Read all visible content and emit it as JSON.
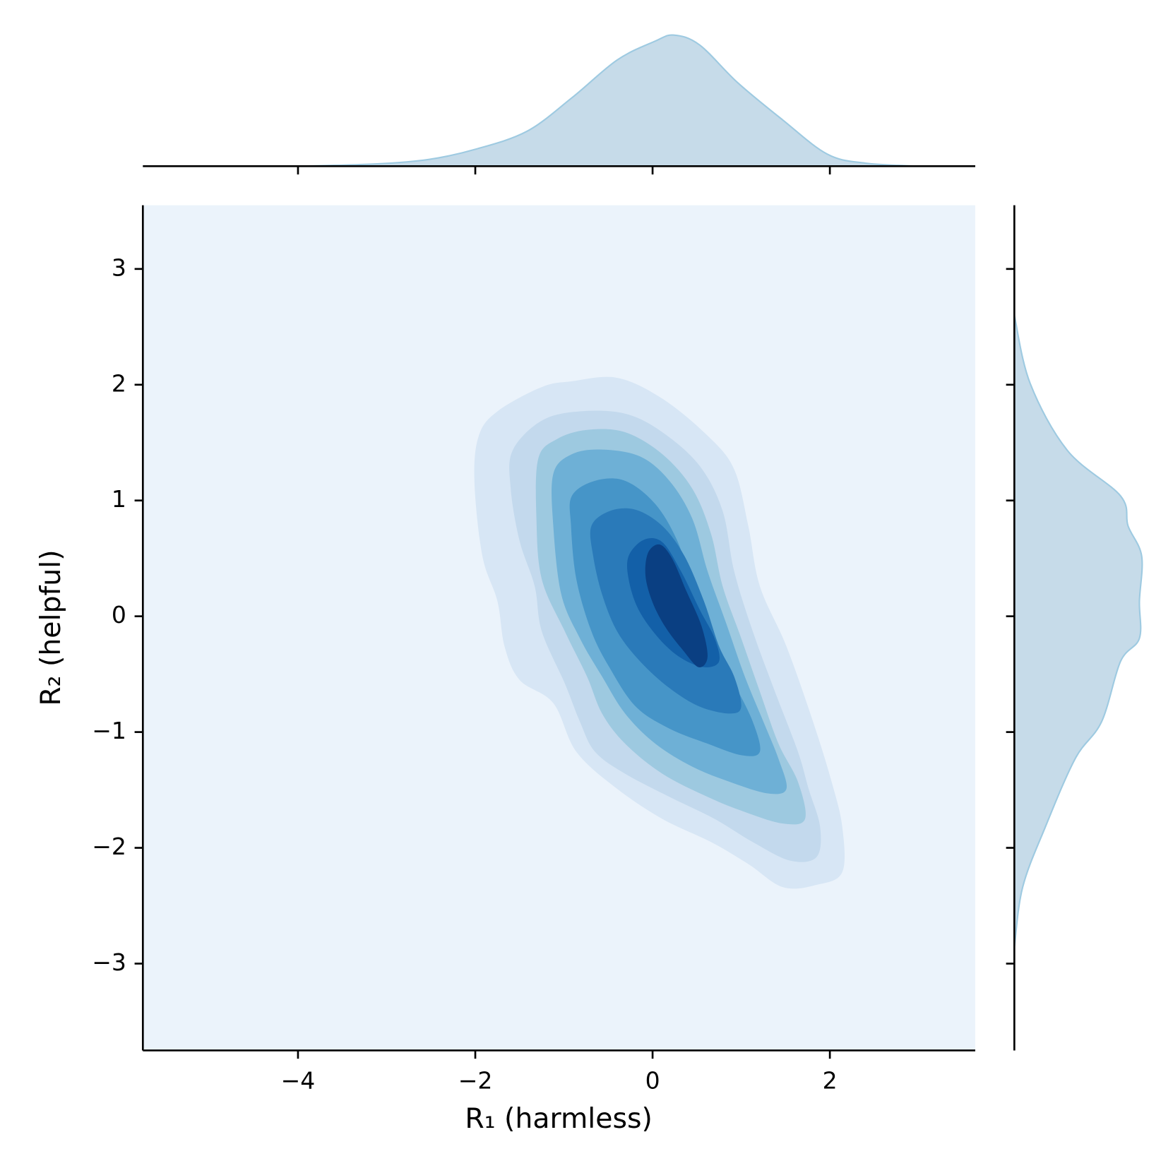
{
  "chart_data": {
    "type": "kde2d",
    "xlabel": "R₁ (harmless)",
    "ylabel": "R₂ (helpful)",
    "xlim": [
      -5.75,
      3.64
    ],
    "ylim": [
      -3.75,
      3.55
    ],
    "xticks": [
      {
        "value": -4,
        "label": "−4"
      },
      {
        "value": -2,
        "label": "−2"
      },
      0,
      2
    ],
    "yticks": [
      {
        "value": -3,
        "label": "−3"
      },
      {
        "value": -2,
        "label": "−2"
      },
      {
        "value": -1,
        "label": "−1"
      },
      0,
      1,
      2,
      3
    ],
    "background_color": "#ebf3fb",
    "contours": [
      {
        "color": "#d7e6f5",
        "x": [
          -1.96,
          -1.75,
          -1.25,
          -0.91,
          -0.4,
          0.11,
          0.62,
          0.92,
          1.08,
          1.21,
          1.51,
          1.81,
          2.02,
          2.14,
          2.14,
          1.85,
          1.47,
          1.08,
          0.66,
          0.11,
          -0.4,
          -0.86,
          -1.12,
          -1.5,
          -1.67,
          -1.75,
          -1.92,
          -2.01
        ],
        "y": [
          1.56,
          1.77,
          1.98,
          2.03,
          2.06,
          1.88,
          1.56,
          1.27,
          0.78,
          0.26,
          -0.26,
          -0.91,
          -1.43,
          -1.82,
          -2.21,
          -2.32,
          -2.34,
          -2.14,
          -1.95,
          -1.75,
          -1.49,
          -1.17,
          -0.75,
          -0.55,
          -0.26,
          0.13,
          0.52,
          1.17
        ]
      },
      {
        "color": "#c3d9ed",
        "x": [
          -1.58,
          -1.25,
          -0.82,
          -0.31,
          0.11,
          0.53,
          0.79,
          0.92,
          1.13,
          1.38,
          1.64,
          1.76,
          1.89,
          1.85,
          1.55,
          1.13,
          0.7,
          0.19,
          -0.31,
          -0.65,
          -0.82,
          -0.99,
          -1.25,
          -1.33,
          -1.5,
          -1.6
        ],
        "y": [
          1.43,
          1.69,
          1.77,
          1.75,
          1.59,
          1.3,
          0.91,
          0.39,
          -0.13,
          -0.65,
          -1.17,
          -1.49,
          -1.82,
          -2.08,
          -2.11,
          -1.95,
          -1.75,
          -1.56,
          -1.36,
          -1.17,
          -0.91,
          -0.58,
          -0.13,
          0.26,
          0.65,
          1.1
        ]
      },
      {
        "color": "#9dc9e0",
        "x": [
          -1.29,
          -1.08,
          -0.74,
          -0.31,
          0.11,
          0.45,
          0.66,
          0.79,
          1.0,
          1.21,
          1.42,
          1.64,
          1.72,
          1.47,
          1.04,
          0.62,
          0.11,
          -0.31,
          -0.57,
          -0.74,
          -0.99,
          -1.25,
          -1.31
        ],
        "y": [
          1.36,
          1.53,
          1.61,
          1.59,
          1.4,
          1.1,
          0.71,
          0.26,
          -0.19,
          -0.65,
          -1.1,
          -1.43,
          -1.75,
          -1.79,
          -1.69,
          -1.56,
          -1.36,
          -1.1,
          -0.84,
          -0.52,
          -0.13,
          0.32,
          0.84
        ]
      },
      {
        "color": "#6eb0d6",
        "x": [
          -1.12,
          -0.91,
          -0.57,
          -0.14,
          0.19,
          0.45,
          0.62,
          0.83,
          1.04,
          1.25,
          1.42,
          1.51,
          1.3,
          0.87,
          0.45,
          0.03,
          -0.31,
          -0.57,
          -0.82,
          -1.03,
          -1.12
        ],
        "y": [
          1.23,
          1.4,
          1.44,
          1.38,
          1.17,
          0.84,
          0.39,
          -0.06,
          -0.52,
          -0.91,
          -1.23,
          -1.49,
          -1.53,
          -1.43,
          -1.3,
          -1.1,
          -0.84,
          -0.52,
          -0.19,
          0.19,
          0.78
        ]
      },
      {
        "color": "#4695c8",
        "x": [
          -0.91,
          -0.65,
          -0.31,
          0.03,
          0.28,
          0.45,
          0.66,
          0.92,
          1.13,
          1.21,
          1.0,
          0.62,
          0.19,
          -0.19,
          -0.48,
          -0.69,
          -0.86,
          -0.92
        ],
        "y": [
          1.04,
          1.17,
          1.17,
          0.97,
          0.65,
          0.26,
          -0.19,
          -0.58,
          -0.91,
          -1.17,
          -1.2,
          -1.1,
          -0.97,
          -0.78,
          -0.45,
          -0.13,
          0.32,
          0.78
        ]
      },
      {
        "color": "#2a7ab9",
        "x": [
          -0.69,
          -0.48,
          -0.19,
          0.11,
          0.36,
          0.58,
          0.75,
          0.92,
          1.0,
          0.87,
          0.53,
          0.19,
          -0.14,
          -0.4,
          -0.57,
          -0.67
        ],
        "y": [
          0.78,
          0.91,
          0.92,
          0.78,
          0.52,
          0.13,
          -0.26,
          -0.52,
          -0.78,
          -0.84,
          -0.78,
          -0.62,
          -0.39,
          -0.13,
          0.19,
          0.52
        ]
      },
      {
        "color": "#1360a8",
        "x": [
          -0.27,
          -0.1,
          0.11,
          0.32,
          0.53,
          0.7,
          0.75,
          0.58,
          0.32,
          0.07,
          -0.16,
          -0.27
        ],
        "y": [
          0.52,
          0.66,
          0.64,
          0.39,
          0.06,
          -0.19,
          -0.39,
          -0.44,
          -0.36,
          -0.19,
          0.06,
          0.32
        ]
      },
      {
        "color": "#0a3f82",
        "x": [
          -0.05,
          0.08,
          0.22,
          0.38,
          0.55,
          0.62,
          0.52,
          0.35,
          0.15,
          0.0,
          -0.08
        ],
        "y": [
          0.55,
          0.62,
          0.5,
          0.22,
          -0.08,
          -0.35,
          -0.44,
          -0.3,
          -0.1,
          0.12,
          0.35
        ]
      }
    ],
    "marginal_x": {
      "color": "#c6dbe9",
      "edge": "#9ecae1",
      "lim": [
        0,
        0.4
      ],
      "x": [
        -3.99,
        -3.11,
        -2.52,
        -2.01,
        -1.42,
        -0.91,
        -0.4,
        0.03,
        0.24,
        0.53,
        0.96,
        1.47,
        1.97,
        2.4,
        2.99
      ],
      "values": [
        0.0,
        0.006,
        0.018,
        0.044,
        0.092,
        0.181,
        0.281,
        0.331,
        0.347,
        0.321,
        0.221,
        0.122,
        0.032,
        0.008,
        0.0
      ]
    },
    "marginal_y": {
      "color": "#c6dbe9",
      "edge": "#9ecae1",
      "lim": [
        0,
        0.4
      ],
      "y": [
        2.6,
        2.01,
        1.43,
        1.04,
        0.78,
        0.52,
        0.13,
        -0.19,
        -0.39,
        -0.91,
        -1.23,
        -1.82,
        -2.34,
        -2.86
      ],
      "values": [
        0.0,
        0.042,
        0.141,
        0.281,
        0.301,
        0.337,
        0.331,
        0.331,
        0.281,
        0.231,
        0.161,
        0.082,
        0.022,
        0.0
      ]
    }
  }
}
